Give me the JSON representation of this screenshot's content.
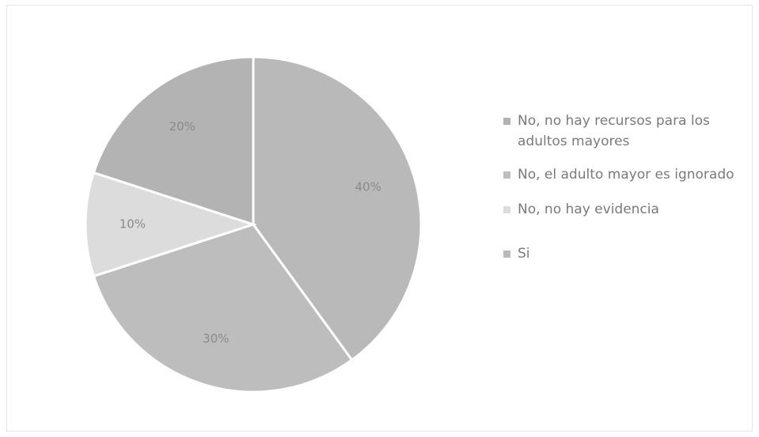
{
  "chart_data": {
    "type": "pie",
    "title": "",
    "slices": [
      {
        "label": "Si",
        "value": 40,
        "display": "40%",
        "color": "#b9b9b9"
      },
      {
        "label": "No, el adulto mayor es ignorado",
        "value": 30,
        "display": "30%",
        "color": "#bdbdbd"
      },
      {
        "label": "No, no hay evidencia",
        "value": 10,
        "display": "10%",
        "color": "#dcdcdc"
      },
      {
        "label": "No, no hay recursos para los adultos mayores",
        "value": 20,
        "display": "20%",
        "color": "#b3b3b3"
      }
    ],
    "legend": {
      "position": "right",
      "entries": [
        {
          "label": "No, no hay recursos para los adultos mayores",
          "color": "#b3b3b3"
        },
        {
          "label": "No, el adulto mayor es ignorado",
          "color": "#bdbdbd"
        },
        {
          "label": "No, no hay evidencia",
          "color": "#dcdcdc"
        },
        {
          "label": "Si",
          "color": "#b9b9b9"
        }
      ]
    }
  }
}
